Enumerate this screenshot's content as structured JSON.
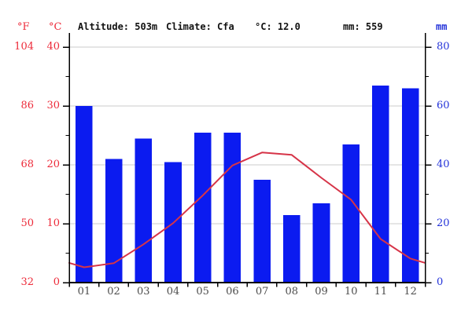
{
  "header": {
    "fahrenheit_unit": "°F",
    "celsius_unit": "°C",
    "altitude": "Altitude: 503m",
    "climate": "Climate: Cfa",
    "avg_temp": "°C: 12.0",
    "annual_precip": "mm: 559",
    "mm_unit": "mm"
  },
  "colors": {
    "bar_blue": "#0b1bf0",
    "line_red": "#d63448",
    "red_text": "#ed2b3a",
    "blue_text": "#2433d9",
    "gridline": "#cbcbcb",
    "axis": "#000000",
    "month_text": "#4d4d4d"
  },
  "chart_data": {
    "type": "bar",
    "subtype": "climate chart: precipitation bars + temperature line",
    "categories": [
      "01",
      "02",
      "03",
      "04",
      "05",
      "06",
      "07",
      "08",
      "09",
      "10",
      "11",
      "12"
    ],
    "series": [
      {
        "name": "precipitation_mm",
        "type": "bar",
        "values": [
          60,
          42,
          49,
          41,
          51,
          51,
          35,
          23,
          27,
          47,
          67,
          66
        ]
      },
      {
        "name": "temperature_c",
        "type": "line",
        "values": [
          2.6,
          3.3,
          6.5,
          10.1,
          14.8,
          19.9,
          22.1,
          21.7,
          17.8,
          14.1,
          7.4,
          4.1
        ]
      }
    ],
    "title": "",
    "xlabel": "",
    "ylabel_left": "°C",
    "ylabel_right": "mm",
    "y_left_celsius": {
      "ticks": [
        40,
        30,
        20,
        10,
        0
      ],
      "minor_step": 5,
      "range": [
        0,
        40
      ]
    },
    "y_left_fahrenheit": {
      "ticks": [
        104,
        86,
        68,
        50,
        32
      ]
    },
    "y_right_mm": {
      "ticks": [
        80,
        60,
        40,
        20,
        0
      ],
      "minor_step": 10,
      "range": [
        0,
        80
      ]
    },
    "grid": "horizontal gridlines at 10,20,30,40 °C",
    "legend": "none",
    "annual_mean_temp_c": 12.0,
    "annual_precip_mm": 559
  }
}
